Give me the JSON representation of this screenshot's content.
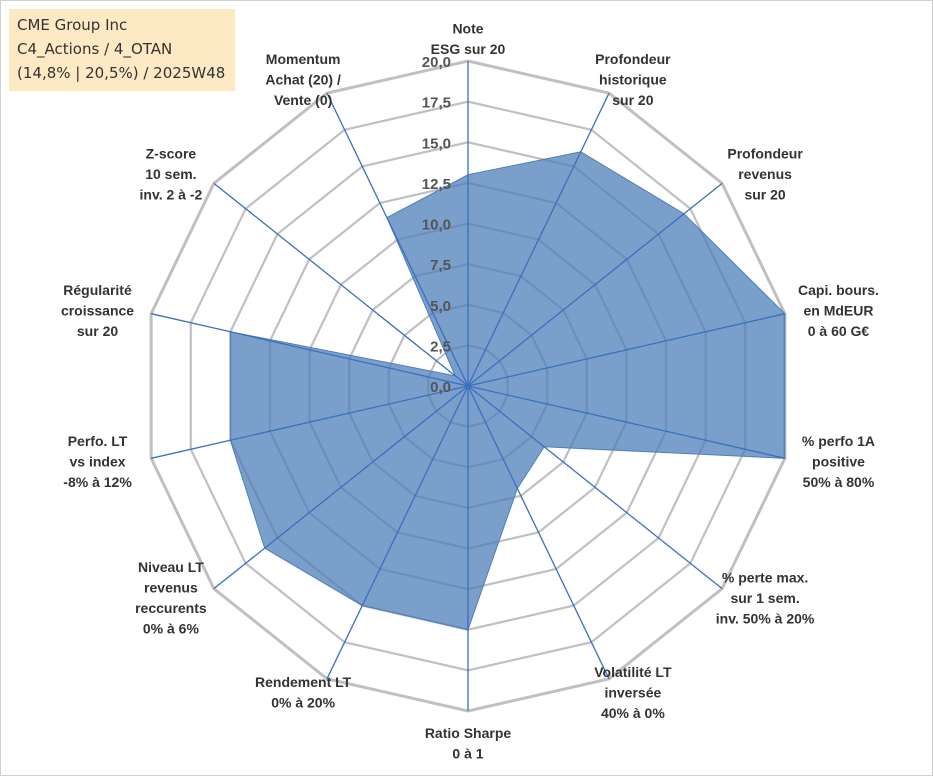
{
  "info_box": {
    "line1": "CME Group Inc",
    "line2": "C4_Actions / 4_OTAN",
    "line3": "(14,8% | 20,5%) / 2025W48"
  },
  "chart_data": {
    "type": "radar",
    "title": "",
    "rmin": 0,
    "rmax": 20,
    "ticks": [
      "0,0",
      "2,5",
      "5,0",
      "7,5",
      "10,0",
      "12,5",
      "15,0",
      "17,5",
      "20,0"
    ],
    "axes": [
      {
        "label": [
          "Note",
          "ESG sur 20"
        ],
        "value": 13
      },
      {
        "label": [
          "Profondeur",
          "historique",
          "sur 20"
        ],
        "value": 16
      },
      {
        "label": [
          "Profondeur",
          "revenus",
          "sur 20"
        ],
        "value": 17
      },
      {
        "label": [
          "Capi. bours.",
          "en MdEUR",
          "0 à 60 G€"
        ],
        "value": 20
      },
      {
        "label": [
          "% perfo 1A",
          "positive",
          "50% à 80%"
        ],
        "value": 20
      },
      {
        "label": [
          "% perte max.",
          "sur 1 sem.",
          "inv. 50% à 20%"
        ],
        "value": 6
      },
      {
        "label": [
          "Volatilité LT",
          "inversée",
          "40% à 0%"
        ],
        "value": 7
      },
      {
        "label": [
          "Ratio Sharpe",
          "0 à 1"
        ],
        "value": 15
      },
      {
        "label": [
          "Rendement LT",
          "0% à 20%"
        ],
        "value": 15
      },
      {
        "label": [
          "Niveau LT",
          "revenus",
          "reccurents",
          "0% à 6%"
        ],
        "value": 16
      },
      {
        "label": [
          "Perfo. LT",
          "vs index",
          "-8% à 12%"
        ],
        "value": 15
      },
      {
        "label": [
          "Régularité",
          "croissance",
          "sur 20"
        ],
        "value": 15
      },
      {
        "label": [
          "Z-score",
          "10 sem.",
          "inv. 2 à -2"
        ],
        "value": 1
      },
      {
        "label": [
          "Momentum",
          "Achat (20) /",
          "Vente (0)"
        ],
        "value": 11.5
      }
    ],
    "colors": {
      "fill": "#4f7fba",
      "fill_opacity": 0.75,
      "spoke": "#3a6fc0",
      "grid": "#c0c0c0"
    }
  }
}
